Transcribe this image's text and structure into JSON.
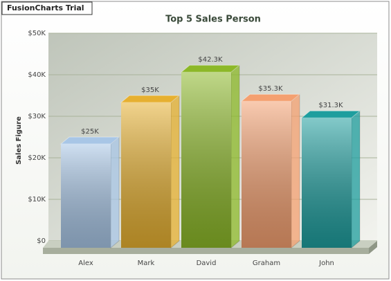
{
  "watermark": "FusionCharts Trial",
  "chart_data": {
    "type": "bar3d",
    "title": "Top 5 Sales Person",
    "y_label": "Sales Figure",
    "categories": [
      "Alex",
      "Mark",
      "David",
      "Graham",
      "John"
    ],
    "values": [
      25000,
      35000,
      42300,
      35300,
      31300
    ],
    "value_labels": [
      "$25K",
      "$35K",
      "$42.3K",
      "$35.3K",
      "$31.3K"
    ],
    "colors": [
      "#a8c6e6",
      "#e6b030",
      "#8cb828",
      "#f4a070",
      "#1e9e9e"
    ],
    "ylim": [
      0,
      50000
    ],
    "yticks": [
      {
        "value": 0,
        "label": "$0"
      },
      {
        "value": 10000,
        "label": "$10K"
      },
      {
        "value": 20000,
        "label": "$20K"
      },
      {
        "value": 30000,
        "label": "$30K"
      },
      {
        "value": 40000,
        "label": "$40K"
      },
      {
        "value": 50000,
        "label": "$50K"
      }
    ],
    "grid": true
  }
}
